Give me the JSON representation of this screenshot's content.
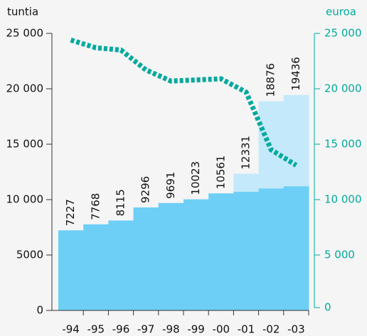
{
  "chart_data": {
    "type": "bar",
    "y_label": "tuntia",
    "y2_label": "euroa",
    "categories": [
      "-94",
      "-95",
      "-96",
      "-97",
      "-98",
      "-99",
      "-00",
      "-01",
      "-02",
      "-03"
    ],
    "series": [
      {
        "color": "#c4e9fa",
        "values": [
          7227,
          7768,
          8115,
          9296,
          9691,
          10023,
          10561,
          12331,
          18876,
          19436
        ]
      },
      {
        "color": "#6dcff6",
        "values": [
          7227,
          7768,
          8115,
          9296,
          9691,
          10023,
          10561,
          10700,
          11000,
          11200
        ]
      },
      {
        "type": "line",
        "axis": "y2",
        "color": "#00a99d",
        "values": [
          24400,
          23700,
          23500,
          21700,
          20700,
          20800,
          20900,
          19700,
          14500,
          13100
        ]
      }
    ],
    "ylim": [
      0,
      25000
    ],
    "yticks": [
      0,
      5000,
      {
        "value": 10000,
        "label": "10 000"
      },
      {
        "value": 15000,
        "label": "15 000"
      },
      {
        "value": 20000,
        "label": "20 000"
      },
      {
        "value": 25000,
        "label": "25 000"
      }
    ],
    "y2lim": [
      0,
      25000
    ],
    "y2ticks": [
      0,
      {
        "value": 5000,
        "label": "5 000"
      },
      {
        "value": 10000,
        "label": "10 000"
      },
      {
        "value": 15000,
        "label": "15 000"
      },
      {
        "value": 20000,
        "label": "20 000"
      },
      {
        "value": 25000,
        "label": "25 000"
      }
    ]
  }
}
